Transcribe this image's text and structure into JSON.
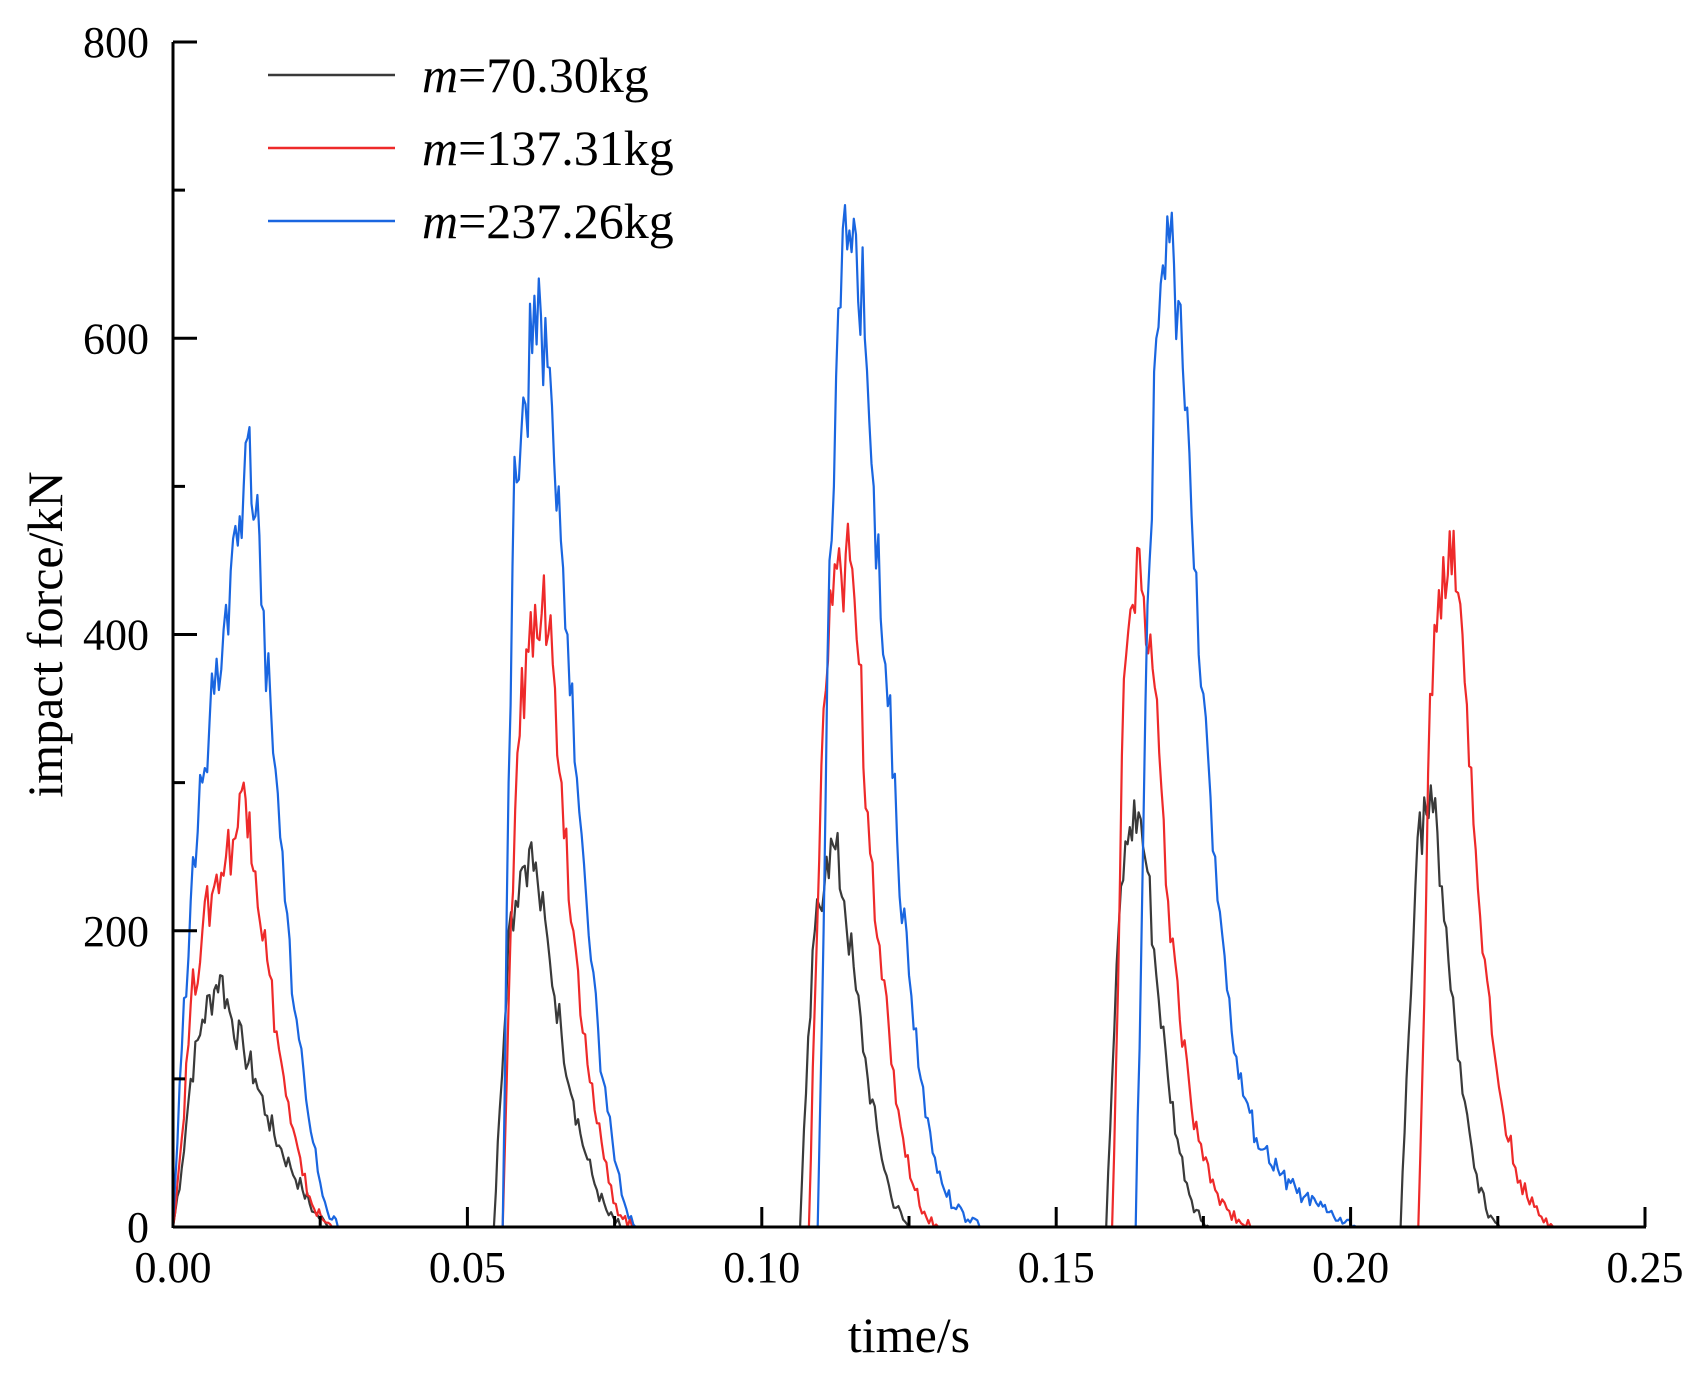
{
  "chart_data": {
    "type": "line",
    "title": "",
    "xlabel": "time/s",
    "ylabel": "impact force/kN",
    "xlim": [
      0,
      0.25
    ],
    "ylim": [
      0,
      800
    ],
    "xticks": [
      0,
      0.05,
      0.1,
      0.15,
      0.2,
      0.25
    ],
    "xtick_labels": [
      "0.00",
      "0.05",
      "0.10",
      "0.15",
      "0.20",
      "0.25"
    ],
    "yticks": [
      0,
      200,
      400,
      600,
      800
    ],
    "ytick_labels": [
      "0",
      "200",
      "400",
      "600",
      "800"
    ],
    "grid": false,
    "legend_position": "top-left",
    "series": [
      {
        "name": "m=70.30kg",
        "legend_var": "m",
        "legend_value": "=70.30kg",
        "color": "#3a3a3a",
        "points": [
          [
            0.0,
            0
          ],
          [
            0.0015,
            40
          ],
          [
            0.003,
            100
          ],
          [
            0.005,
            140
          ],
          [
            0.007,
            160
          ],
          [
            0.008,
            170
          ],
          [
            0.01,
            140
          ],
          [
            0.012,
            120
          ],
          [
            0.014,
            100
          ],
          [
            0.016,
            75
          ],
          [
            0.018,
            55
          ],
          [
            0.02,
            40
          ],
          [
            0.022,
            25
          ],
          [
            0.024,
            10
          ],
          [
            0.026,
            2
          ],
          [
            0.027,
            0
          ],
          [
            0.0545,
            0
          ],
          [
            0.0555,
            80
          ],
          [
            0.057,
            200
          ],
          [
            0.059,
            240
          ],
          [
            0.0605,
            255
          ],
          [
            0.062,
            230
          ],
          [
            0.064,
            180
          ],
          [
            0.066,
            130
          ],
          [
            0.068,
            85
          ],
          [
            0.07,
            50
          ],
          [
            0.072,
            25
          ],
          [
            0.074,
            8
          ],
          [
            0.076,
            0
          ],
          [
            0.1065,
            0
          ],
          [
            0.1075,
            90
          ],
          [
            0.109,
            200
          ],
          [
            0.111,
            250
          ],
          [
            0.1125,
            255
          ],
          [
            0.114,
            220
          ],
          [
            0.116,
            160
          ],
          [
            0.118,
            100
          ],
          [
            0.12,
            55
          ],
          [
            0.122,
            20
          ],
          [
            0.124,
            5
          ],
          [
            0.125,
            0
          ],
          [
            0.1585,
            0
          ],
          [
            0.1595,
            100
          ],
          [
            0.161,
            230
          ],
          [
            0.1625,
            270
          ],
          [
            0.164,
            280
          ],
          [
            0.1655,
            240
          ],
          [
            0.167,
            170
          ],
          [
            0.169,
            100
          ],
          [
            0.171,
            50
          ],
          [
            0.173,
            18
          ],
          [
            0.175,
            3
          ],
          [
            0.176,
            0
          ],
          [
            0.2085,
            0
          ],
          [
            0.2095,
            100
          ],
          [
            0.211,
            230
          ],
          [
            0.2125,
            290
          ],
          [
            0.214,
            280
          ],
          [
            0.2155,
            230
          ],
          [
            0.217,
            160
          ],
          [
            0.219,
            90
          ],
          [
            0.221,
            40
          ],
          [
            0.223,
            12
          ],
          [
            0.225,
            2
          ],
          [
            0.226,
            0
          ]
        ]
      },
      {
        "name": "m=137.31kg",
        "legend_var": "m",
        "legend_value": "=137.31kg",
        "color": "#ee2a2a",
        "points": [
          [
            0.0,
            0
          ],
          [
            0.0015,
            60
          ],
          [
            0.003,
            150
          ],
          [
            0.005,
            200
          ],
          [
            0.007,
            230
          ],
          [
            0.009,
            250
          ],
          [
            0.011,
            270
          ],
          [
            0.012,
            300
          ],
          [
            0.013,
            280
          ],
          [
            0.014,
            240
          ],
          [
            0.016,
            180
          ],
          [
            0.018,
            120
          ],
          [
            0.02,
            70
          ],
          [
            0.022,
            35
          ],
          [
            0.024,
            12
          ],
          [
            0.026,
            3
          ],
          [
            0.027,
            0
          ],
          [
            0.056,
            0
          ],
          [
            0.057,
            150
          ],
          [
            0.0585,
            320
          ],
          [
            0.06,
            390
          ],
          [
            0.0615,
            420
          ],
          [
            0.063,
            440
          ],
          [
            0.0645,
            380
          ],
          [
            0.066,
            300
          ],
          [
            0.068,
            200
          ],
          [
            0.07,
            130
          ],
          [
            0.072,
            70
          ],
          [
            0.074,
            30
          ],
          [
            0.076,
            8
          ],
          [
            0.078,
            0
          ],
          [
            0.108,
            0
          ],
          [
            0.109,
            150
          ],
          [
            0.1105,
            350
          ],
          [
            0.112,
            420
          ],
          [
            0.1135,
            440
          ],
          [
            0.115,
            450
          ],
          [
            0.1165,
            380
          ],
          [
            0.118,
            280
          ],
          [
            0.12,
            190
          ],
          [
            0.122,
            110
          ],
          [
            0.124,
            60
          ],
          [
            0.126,
            25
          ],
          [
            0.128,
            6
          ],
          [
            0.13,
            0
          ],
          [
            0.1595,
            0
          ],
          [
            0.1605,
            160
          ],
          [
            0.1615,
            370
          ],
          [
            0.163,
            420
          ],
          [
            0.1645,
            430
          ],
          [
            0.166,
            400
          ],
          [
            0.1675,
            320
          ],
          [
            0.169,
            220
          ],
          [
            0.171,
            140
          ],
          [
            0.173,
            80
          ],
          [
            0.175,
            45
          ],
          [
            0.177,
            25
          ],
          [
            0.179,
            12
          ],
          [
            0.181,
            5
          ],
          [
            0.183,
            0
          ],
          [
            0.2115,
            0
          ],
          [
            0.2125,
            150
          ],
          [
            0.2135,
            360
          ],
          [
            0.215,
            430
          ],
          [
            0.2165,
            440
          ],
          [
            0.2175,
            470
          ],
          [
            0.219,
            400
          ],
          [
            0.2205,
            310
          ],
          [
            0.222,
            210
          ],
          [
            0.224,
            130
          ],
          [
            0.226,
            75
          ],
          [
            0.228,
            40
          ],
          [
            0.23,
            20
          ],
          [
            0.232,
            8
          ],
          [
            0.234,
            2
          ],
          [
            0.236,
            0
          ]
        ]
      },
      {
        "name": "m=237.26kg",
        "legend_var": "m",
        "legend_value": "=237.26kg",
        "color": "#1a66e0",
        "points": [
          [
            0.0,
            0
          ],
          [
            0.0015,
            120
          ],
          [
            0.003,
            220
          ],
          [
            0.005,
            300
          ],
          [
            0.007,
            360
          ],
          [
            0.009,
            420
          ],
          [
            0.011,
            460
          ],
          [
            0.012,
            500
          ],
          [
            0.013,
            540
          ],
          [
            0.014,
            480
          ],
          [
            0.015,
            420
          ],
          [
            0.017,
            320
          ],
          [
            0.019,
            220
          ],
          [
            0.021,
            140
          ],
          [
            0.023,
            75
          ],
          [
            0.025,
            30
          ],
          [
            0.027,
            5
          ],
          [
            0.028,
            0
          ],
          [
            0.056,
            0
          ],
          [
            0.057,
            300
          ],
          [
            0.058,
            520
          ],
          [
            0.0595,
            560
          ],
          [
            0.061,
            590
          ],
          [
            0.0625,
            615
          ],
          [
            0.064,
            580
          ],
          [
            0.0655,
            500
          ],
          [
            0.067,
            400
          ],
          [
            0.069,
            280
          ],
          [
            0.071,
            180
          ],
          [
            0.073,
            100
          ],
          [
            0.075,
            45
          ],
          [
            0.077,
            12
          ],
          [
            0.079,
            0
          ],
          [
            0.1095,
            0
          ],
          [
            0.1105,
            200
          ],
          [
            0.1115,
            450
          ],
          [
            0.113,
            620
          ],
          [
            0.1145,
            660
          ],
          [
            0.116,
            670
          ],
          [
            0.1175,
            600
          ],
          [
            0.119,
            500
          ],
          [
            0.121,
            380
          ],
          [
            0.123,
            260
          ],
          [
            0.125,
            170
          ],
          [
            0.127,
            100
          ],
          [
            0.129,
            50
          ],
          [
            0.131,
            25
          ],
          [
            0.133,
            12
          ],
          [
            0.135,
            5
          ],
          [
            0.137,
            0
          ],
          [
            0.1635,
            0
          ],
          [
            0.1645,
            200
          ],
          [
            0.1655,
            420
          ],
          [
            0.167,
            600
          ],
          [
            0.1685,
            640
          ],
          [
            0.17,
            650
          ],
          [
            0.1715,
            580
          ],
          [
            0.173,
            480
          ],
          [
            0.175,
            360
          ],
          [
            0.177,
            250
          ],
          [
            0.179,
            160
          ],
          [
            0.181,
            100
          ],
          [
            0.184,
            60
          ],
          [
            0.188,
            35
          ],
          [
            0.192,
            20
          ],
          [
            0.196,
            10
          ],
          [
            0.199,
            3
          ],
          [
            0.201,
            0
          ],
          [
            0.21,
            0
          ],
          [
            0.25,
            0
          ]
        ]
      }
    ]
  }
}
